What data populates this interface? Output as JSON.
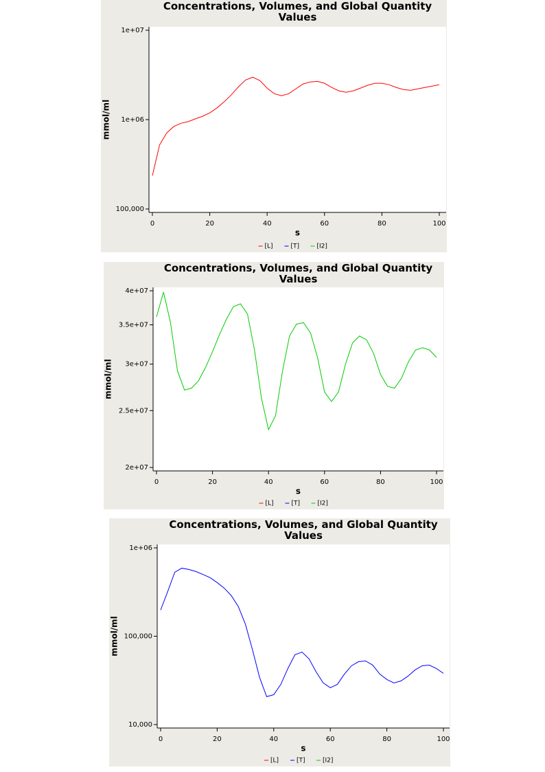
{
  "chart_data": [
    {
      "type": "line",
      "title": "Concentrations, Volumes, and Global Quantity Values",
      "x_label": "s",
      "y_label": "mmol/ml",
      "x": [
        0,
        2.5,
        5,
        7.5,
        10,
        12.5,
        15,
        17.5,
        20,
        22.5,
        25,
        27.5,
        30,
        32.5,
        35,
        37.5,
        40,
        42.5,
        45,
        47.5,
        50,
        52.5,
        55,
        57.5,
        60,
        62.5,
        65,
        67.5,
        70,
        72.5,
        75,
        77.5,
        80,
        82.5,
        85,
        87.5,
        90,
        92.5,
        95,
        97.5,
        100
      ],
      "xlim": [
        0,
        100
      ],
      "xticks": [
        0,
        20,
        40,
        60,
        80,
        100
      ],
      "ylim": [
        100000,
        10000000
      ],
      "log_y": true,
      "legend": "bottom",
      "yticks": [
        {
          "value": 100000,
          "label": "100,000"
        },
        {
          "value": 1000000,
          "label": "1e+06"
        },
        {
          "value": 10000000,
          "label": "1e+07"
        }
      ],
      "series": [
        {
          "name": "[L]",
          "color": "#ff0000",
          "values": [
            236000,
            520000,
            710000,
            840000,
            910000,
            950000,
            1020000,
            1090000,
            1190000,
            1350000,
            1580000,
            1890000,
            2330000,
            2780000,
            2980000,
            2730000,
            2250000,
            1950000,
            1850000,
            1950000,
            2210000,
            2500000,
            2640000,
            2680000,
            2550000,
            2290000,
            2100000,
            2020000,
            2100000,
            2250000,
            2420000,
            2550000,
            2550000,
            2460000,
            2290000,
            2170000,
            2130000,
            2210000,
            2290000,
            2370000,
            2460000
          ]
        },
        {
          "name": "[T]",
          "color": "#0000ff",
          "values": [
            null,
            null,
            null,
            null,
            null,
            null,
            null,
            null,
            null,
            null,
            null,
            null,
            null,
            null,
            null,
            null,
            null,
            null,
            null,
            null,
            null,
            null,
            null,
            null,
            null,
            null,
            null,
            null,
            null,
            null,
            null,
            null,
            null,
            null,
            null,
            null,
            null,
            null,
            null,
            null,
            null
          ]
        },
        {
          "name": "[I2]",
          "color": "#00cc00",
          "values": [
            null,
            null,
            null,
            null,
            null,
            null,
            null,
            null,
            null,
            null,
            null,
            null,
            null,
            null,
            null,
            null,
            null,
            null,
            null,
            null,
            null,
            null,
            null,
            null,
            null,
            null,
            null,
            null,
            null,
            null,
            null,
            null,
            null,
            null,
            null,
            null,
            null,
            null,
            null,
            null,
            null
          ]
        }
      ]
    },
    {
      "type": "line",
      "title": "Concentrations, Volumes, and Global Quantity Values",
      "x_label": "s",
      "y_label": "mmol/ml",
      "x": [
        0,
        2.5,
        5,
        7.5,
        10,
        12.5,
        15,
        17.5,
        20,
        22.5,
        25,
        27.5,
        30,
        32.5,
        35,
        37.5,
        40,
        42.5,
        45,
        47.5,
        50,
        52.5,
        55,
        57.5,
        60,
        62.5,
        65,
        67.5,
        70,
        72.5,
        75,
        77.5,
        80,
        82.5,
        85,
        87.5,
        90,
        92.5,
        95,
        97.5,
        100
      ],
      "xlim": [
        0,
        100
      ],
      "xticks": [
        0,
        20,
        40,
        60,
        80,
        100
      ],
      "ylim": [
        20000000,
        40000000
      ],
      "log_y": true,
      "legend": "bottom",
      "yticks": [
        {
          "value": 20000000,
          "label": "2e+07"
        },
        {
          "value": 25000000,
          "label": "2.5e+07"
        },
        {
          "value": 30000000,
          "label": "3e+07"
        },
        {
          "value": 35000000,
          "label": "3.5e+07"
        },
        {
          "value": 40000000,
          "label": "4e+07"
        }
      ],
      "series": [
        {
          "name": "[L]",
          "color": "#ff0000",
          "values": [
            null,
            null,
            null,
            null,
            null,
            null,
            null,
            null,
            null,
            null,
            null,
            null,
            null,
            null,
            null,
            null,
            null,
            null,
            null,
            null,
            null,
            null,
            null,
            null,
            null,
            null,
            null,
            null,
            null,
            null,
            null,
            null,
            null,
            null,
            null,
            null,
            null,
            null,
            null,
            null,
            null
          ]
        },
        {
          "name": "[T]",
          "color": "#0000ff",
          "values": [
            null,
            null,
            null,
            null,
            null,
            null,
            null,
            null,
            null,
            null,
            null,
            null,
            null,
            null,
            null,
            null,
            null,
            null,
            null,
            null,
            null,
            null,
            null,
            null,
            null,
            null,
            null,
            null,
            null,
            null,
            null,
            null,
            null,
            null,
            null,
            null,
            null,
            null,
            null,
            null,
            null
          ]
        },
        {
          "name": "[I2]",
          "color": "#00cc00",
          "values": [
            36100000,
            39800000,
            35300000,
            29200000,
            27100000,
            27300000,
            28100000,
            29600000,
            31500000,
            33700000,
            35800000,
            37600000,
            38000000,
            36500000,
            31700000,
            26200000,
            23200000,
            24500000,
            29200000,
            33500000,
            35100000,
            35300000,
            33900000,
            30800000,
            26900000,
            25900000,
            26900000,
            30000000,
            32600000,
            33500000,
            33000000,
            31300000,
            28800000,
            27500000,
            27300000,
            28400000,
            30300000,
            31700000,
            32000000,
            31700000,
            30800000
          ]
        }
      ]
    },
    {
      "type": "line",
      "title": "Concentrations, Volumes, and Global Quantity Values",
      "x_label": "s",
      "y_label": "mmol/ml",
      "x": [
        0,
        2.5,
        5,
        7.5,
        10,
        12.5,
        15,
        17.5,
        20,
        22.5,
        25,
        27.5,
        30,
        32.5,
        35,
        37.5,
        40,
        42.5,
        45,
        47.5,
        50,
        52.5,
        55,
        57.5,
        60,
        62.5,
        65,
        67.5,
        70,
        72.5,
        75,
        77.5,
        80,
        82.5,
        85,
        87.5,
        90,
        92.5,
        95,
        97.5,
        100
      ],
      "xlim": [
        0,
        100
      ],
      "xticks": [
        0,
        20,
        40,
        60,
        80,
        100
      ],
      "ylim": [
        10000,
        1000000
      ],
      "log_y": true,
      "legend": "bottom",
      "yticks": [
        {
          "value": 10000,
          "label": "10,000"
        },
        {
          "value": 100000,
          "label": "100,000"
        },
        {
          "value": 1000000,
          "label": "1e+06"
        }
      ],
      "series": [
        {
          "name": "[L]",
          "color": "#ff0000",
          "values": [
            null,
            null,
            null,
            null,
            null,
            null,
            null,
            null,
            null,
            null,
            null,
            null,
            null,
            null,
            null,
            null,
            null,
            null,
            null,
            null,
            null,
            null,
            null,
            null,
            null,
            null,
            null,
            null,
            null,
            null,
            null,
            null,
            null,
            null,
            null,
            null,
            null,
            null,
            null,
            null,
            null
          ]
        },
        {
          "name": "[T]",
          "color": "#0000ff",
          "values": [
            198000,
            320000,
            530000,
            590000,
            570000,
            540000,
            500000,
            460000,
            405000,
            350000,
            288000,
            216000,
            136000,
            69900,
            34100,
            20700,
            21800,
            28500,
            43100,
            61700,
            66200,
            55300,
            39400,
            29600,
            26100,
            28500,
            37300,
            46300,
            51500,
            52500,
            47100,
            37300,
            32400,
            29600,
            31200,
            35400,
            41600,
            46300,
            47100,
            43100,
            38000
          ]
        },
        {
          "name": "[I2]",
          "color": "#00cc00",
          "values": [
            null,
            null,
            null,
            null,
            null,
            null,
            null,
            null,
            null,
            null,
            null,
            null,
            null,
            null,
            null,
            null,
            null,
            null,
            null,
            null,
            null,
            null,
            null,
            null,
            null,
            null,
            null,
            null,
            null,
            null,
            null,
            null,
            null,
            null,
            null,
            null,
            null,
            null,
            null,
            null,
            null
          ]
        }
      ]
    }
  ]
}
